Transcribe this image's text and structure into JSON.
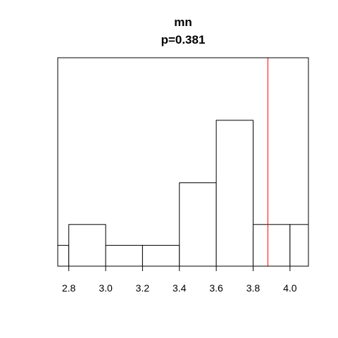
{
  "chart_data": {
    "type": "bar",
    "title": "mn",
    "subtitle": "p=0.381",
    "xlabel": "",
    "ylabel": "",
    "xlim": [
      2.74,
      4.1
    ],
    "ylim": [
      0,
      1
    ],
    "bins": [
      {
        "x0": 2.7,
        "x1": 2.8,
        "value": 0.1
      },
      {
        "x0": 2.8,
        "x1": 3.0,
        "value": 0.2
      },
      {
        "x0": 3.0,
        "x1": 3.2,
        "value": 0.1
      },
      {
        "x0": 3.2,
        "x1": 3.4,
        "value": 0.1
      },
      {
        "x0": 3.4,
        "x1": 3.6,
        "value": 0.4
      },
      {
        "x0": 3.6,
        "x1": 3.8,
        "value": 0.7
      },
      {
        "x0": 3.8,
        "x1": 4.0,
        "value": 0.2
      },
      {
        "x0": 4.0,
        "x1": 4.2,
        "value": 0.2
      }
    ],
    "x_ticks": [
      "2.8",
      "3.0",
      "3.2",
      "3.4",
      "3.6",
      "3.8",
      "4.0"
    ],
    "reference_line": {
      "x": 3.88,
      "color": "#ff0000"
    },
    "grid": false,
    "legend": "none",
    "bar_fill": "#ffffff",
    "bar_stroke": "#000000"
  }
}
